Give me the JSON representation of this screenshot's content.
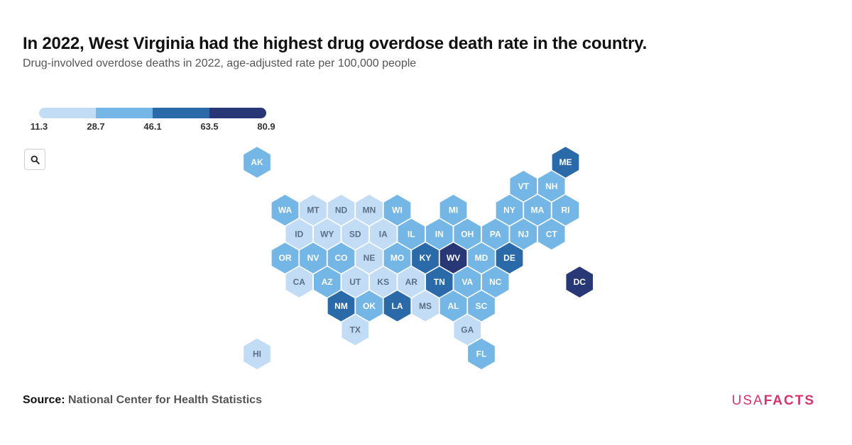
{
  "header": {
    "title": "In 2022, West Virginia had the highest drug overdose death rate in the country.",
    "subtitle": "Drug-involved overdose deaths in 2022, age-adjusted rate per 100,000 people"
  },
  "legend": {
    "ticks": [
      "11.3",
      "28.7",
      "46.1",
      "63.5",
      "80.9"
    ],
    "colors": [
      "#c3dcf5",
      "#74b6e6",
      "#2b6aa8",
      "#283775"
    ]
  },
  "search": {
    "icon": "search-icon"
  },
  "chart_data": {
    "type": "hexbin-map",
    "color_bins": [
      {
        "min": 11.3,
        "max": 28.7,
        "bin": 0
      },
      {
        "min": 28.7,
        "max": 46.1,
        "bin": 1
      },
      {
        "min": 46.1,
        "max": 63.5,
        "bin": 2
      },
      {
        "min": 63.5,
        "max": 80.9,
        "bin": 3
      }
    ],
    "states": [
      {
        "abbr": "AK",
        "col": 0,
        "row": 0,
        "bin": 1
      },
      {
        "abbr": "ME",
        "col": 11,
        "row": 0,
        "bin": 2
      },
      {
        "abbr": "VT",
        "col": 9.5,
        "row": 1,
        "bin": 1
      },
      {
        "abbr": "NH",
        "col": 10.5,
        "row": 1,
        "bin": 1
      },
      {
        "abbr": "WA",
        "col": 1,
        "row": 2,
        "bin": 1
      },
      {
        "abbr": "MT",
        "col": 2,
        "row": 2,
        "bin": 0
      },
      {
        "abbr": "ND",
        "col": 3,
        "row": 2,
        "bin": 0
      },
      {
        "abbr": "MN",
        "col": 4,
        "row": 2,
        "bin": 0
      },
      {
        "abbr": "WI",
        "col": 5,
        "row": 2,
        "bin": 1
      },
      {
        "abbr": "MI",
        "col": 7,
        "row": 2,
        "bin": 1
      },
      {
        "abbr": "NY",
        "col": 9,
        "row": 2,
        "bin": 1
      },
      {
        "abbr": "MA",
        "col": 10,
        "row": 2,
        "bin": 1
      },
      {
        "abbr": "RI",
        "col": 11,
        "row": 2,
        "bin": 1
      },
      {
        "abbr": "ID",
        "col": 1.5,
        "row": 3,
        "bin": 0
      },
      {
        "abbr": "WY",
        "col": 2.5,
        "row": 3,
        "bin": 0
      },
      {
        "abbr": "SD",
        "col": 3.5,
        "row": 3,
        "bin": 0
      },
      {
        "abbr": "IA",
        "col": 4.5,
        "row": 3,
        "bin": 0
      },
      {
        "abbr": "IL",
        "col": 5.5,
        "row": 3,
        "bin": 1
      },
      {
        "abbr": "IN",
        "col": 6.5,
        "row": 3,
        "bin": 1
      },
      {
        "abbr": "OH",
        "col": 7.5,
        "row": 3,
        "bin": 1
      },
      {
        "abbr": "PA",
        "col": 8.5,
        "row": 3,
        "bin": 1
      },
      {
        "abbr": "NJ",
        "col": 9.5,
        "row": 3,
        "bin": 1
      },
      {
        "abbr": "CT",
        "col": 10.5,
        "row": 3,
        "bin": 1
      },
      {
        "abbr": "OR",
        "col": 1,
        "row": 4,
        "bin": 1
      },
      {
        "abbr": "NV",
        "col": 2,
        "row": 4,
        "bin": 1
      },
      {
        "abbr": "CO",
        "col": 3,
        "row": 4,
        "bin": 1
      },
      {
        "abbr": "NE",
        "col": 4,
        "row": 4,
        "bin": 0
      },
      {
        "abbr": "MO",
        "col": 5,
        "row": 4,
        "bin": 1
      },
      {
        "abbr": "KY",
        "col": 6,
        "row": 4,
        "bin": 2
      },
      {
        "abbr": "WV",
        "col": 7,
        "row": 4,
        "bin": 3
      },
      {
        "abbr": "MD",
        "col": 8,
        "row": 4,
        "bin": 1
      },
      {
        "abbr": "DE",
        "col": 9,
        "row": 4,
        "bin": 2
      },
      {
        "abbr": "CA",
        "col": 1.5,
        "row": 5,
        "bin": 0
      },
      {
        "abbr": "AZ",
        "col": 2.5,
        "row": 5,
        "bin": 1
      },
      {
        "abbr": "UT",
        "col": 3.5,
        "row": 5,
        "bin": 0
      },
      {
        "abbr": "KS",
        "col": 4.5,
        "row": 5,
        "bin": 0
      },
      {
        "abbr": "AR",
        "col": 5.5,
        "row": 5,
        "bin": 0
      },
      {
        "abbr": "TN",
        "col": 6.5,
        "row": 5,
        "bin": 2
      },
      {
        "abbr": "VA",
        "col": 7.5,
        "row": 5,
        "bin": 1
      },
      {
        "abbr": "NC",
        "col": 8.5,
        "row": 5,
        "bin": 1
      },
      {
        "abbr": "DC",
        "col": 11.5,
        "row": 5,
        "bin": 3
      },
      {
        "abbr": "NM",
        "col": 3,
        "row": 6,
        "bin": 2
      },
      {
        "abbr": "OK",
        "col": 4,
        "row": 6,
        "bin": 1
      },
      {
        "abbr": "LA",
        "col": 5,
        "row": 6,
        "bin": 2
      },
      {
        "abbr": "MS",
        "col": 6,
        "row": 6,
        "bin": 0
      },
      {
        "abbr": "AL",
        "col": 7,
        "row": 6,
        "bin": 1
      },
      {
        "abbr": "SC",
        "col": 8,
        "row": 6,
        "bin": 1
      },
      {
        "abbr": "TX",
        "col": 3.5,
        "row": 7,
        "bin": 0
      },
      {
        "abbr": "GA",
        "col": 7.5,
        "row": 7,
        "bin": 0
      },
      {
        "abbr": "FL",
        "col": 8,
        "row": 8,
        "bin": 1
      },
      {
        "abbr": "HI",
        "col": 0,
        "row": 8,
        "bin": 0
      }
    ]
  },
  "footer": {
    "source_label": "Source:",
    "source_value": "National Center for Health Statistics",
    "brand_usa": "USA",
    "brand_facts": "FACTS"
  }
}
